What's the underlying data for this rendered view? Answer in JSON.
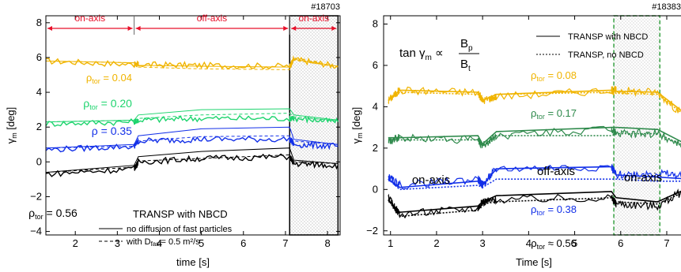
{
  "chart_data": [
    {
      "type": "line",
      "shot": "#18703",
      "xlabel": "time [s]",
      "ylabel_sym": "γ",
      "ylabel_sub": "m",
      "ylabel_unit": "[deg]",
      "xlim": [
        1.3,
        8.3
      ],
      "ylim": [
        -4.2,
        8.4
      ],
      "xticks": [
        2,
        3,
        4,
        5,
        6,
        7,
        8
      ],
      "yticks": [
        -4,
        -2,
        0,
        2,
        4,
        6,
        8
      ],
      "phases": [
        {
          "label": "on-axis",
          "from": 1.3,
          "to": 3.4
        },
        {
          "label": "off-axis",
          "from": 3.4,
          "to": 7.1
        },
        {
          "label": "on-axis",
          "from": 7.1,
          "to": 8.25
        }
      ],
      "hatched_window": [
        7.1,
        8.25
      ],
      "legend_title": "TRANSP with NBCD",
      "legend": [
        {
          "style": "solid",
          "label_pre": "no diffusion of fast particles",
          "label_sub": "",
          "label_post": ""
        },
        {
          "style": "dashed",
          "label_pre": "with D",
          "label_sub": "fast",
          "label_post": "= 0.5 m²/s"
        }
      ],
      "series": [
        {
          "rho_sym": "ρ",
          "rho_sub": "tor",
          "rho_val": "= 0.04",
          "color": "#f0b400",
          "x": [
            1.3,
            3.4,
            3.5,
            5.0,
            7.1,
            7.2,
            8.25
          ],
          "measured": [
            5.8,
            5.6,
            5.6,
            5.55,
            5.5,
            5.9,
            5.5
          ],
          "transp": [
            5.8,
            5.7,
            5.55,
            5.5,
            5.45,
            5.9,
            5.5
          ],
          "transp_diff": [
            5.8,
            5.7,
            5.45,
            5.35,
            5.3,
            5.85,
            5.45
          ]
        },
        {
          "rho_sym": "ρ",
          "rho_sub": "tor",
          "rho_val": "= 0.20",
          "color": "#1ed46e",
          "x": [
            1.3,
            3.4,
            3.5,
            5.0,
            7.1,
            7.2,
            8.25
          ],
          "measured": [
            2.2,
            2.3,
            2.4,
            2.5,
            2.5,
            2.5,
            2.3
          ],
          "transp": [
            2.3,
            2.4,
            2.7,
            3.0,
            3.05,
            2.7,
            2.4
          ],
          "transp_diff": [
            2.3,
            2.4,
            2.5,
            2.7,
            2.8,
            2.6,
            2.35
          ]
        },
        {
          "rho_sym": "ρ",
          "rho_sub": "",
          "rho_val": "= 0.35",
          "color": "#1330e8",
          "x": [
            1.3,
            3.4,
            3.5,
            5.0,
            7.1,
            7.2,
            8.25
          ],
          "measured": [
            0.7,
            0.9,
            1.2,
            1.3,
            1.3,
            1.0,
            0.9
          ],
          "transp": [
            0.8,
            1.0,
            1.5,
            1.9,
            2.0,
            1.3,
            1.0
          ],
          "transp_diff": [
            0.8,
            0.9,
            1.2,
            1.45,
            1.5,
            1.2,
            1.0
          ]
        },
        {
          "rho_sym": "ρ",
          "rho_sub": "tor",
          "rho_val": "= 0.56",
          "color": "#000000",
          "x": [
            1.3,
            3.4,
            3.5,
            5.0,
            7.1,
            7.2,
            8.25
          ],
          "measured": [
            -0.7,
            -0.4,
            0.0,
            0.2,
            0.3,
            -0.1,
            -0.2
          ],
          "transp": [
            -0.6,
            -0.2,
            0.3,
            0.6,
            0.8,
            0.1,
            -0.1
          ],
          "transp_diff": [
            -0.6,
            -0.3,
            0.05,
            0.2,
            0.4,
            0.0,
            -0.1
          ]
        }
      ]
    },
    {
      "type": "line",
      "shot": "#18383",
      "xlabel": "Time [s]",
      "ylabel_sym": "γ",
      "ylabel_sub": "m",
      "ylabel_unit": "[deg]",
      "xlim": [
        0.85,
        7.55
      ],
      "ylim": [
        -2.2,
        8.4
      ],
      "xticks": [
        1,
        2,
        3,
        4,
        5,
        6,
        7
      ],
      "yticks": [
        -2,
        0,
        2,
        4,
        6,
        8
      ],
      "formula_lhs": "tan γ",
      "formula_lhs_sub": "m",
      "formula_op": "∝",
      "formula_num": "B",
      "formula_num_sub": "p",
      "formula_den": "B",
      "formula_den_sub": "t",
      "window": [
        5.85,
        6.85
      ],
      "phase_labels": [
        "on-axis",
        "off-axis",
        "on-axis"
      ],
      "legend": [
        {
          "style": "solid",
          "label": "TRANSP with NBCD"
        },
        {
          "style": "dotted",
          "label": "TRANSP, no NBCD"
        }
      ],
      "series": [
        {
          "rho_sym": "ρ",
          "rho_sub": "tor",
          "rho_val": "= 0.08",
          "color": "#f0b400",
          "x": [
            0.95,
            1.2,
            2.9,
            3.0,
            3.3,
            5.8,
            5.9,
            6.8,
            7.5
          ],
          "measured": [
            4.3,
            4.8,
            4.7,
            4.3,
            4.5,
            4.8,
            4.8,
            4.7,
            3.3
          ],
          "transp": [
            4.3,
            4.8,
            4.7,
            4.3,
            4.6,
            4.8,
            4.75,
            4.7,
            3.5
          ],
          "transp_nonbcd": [
            4.3,
            4.7,
            4.6,
            4.3,
            4.6,
            4.7,
            4.65,
            4.6,
            3.4
          ]
        },
        {
          "rho_sym": "ρ",
          "rho_sub": "tor",
          "rho_val": "= 0.17",
          "color": "#2f8a4c",
          "x": [
            0.95,
            1.2,
            2.9,
            3.0,
            3.3,
            5.8,
            5.9,
            6.8,
            7.5
          ],
          "measured": [
            2.3,
            2.5,
            2.4,
            2.1,
            2.6,
            2.9,
            2.7,
            2.7,
            2.0
          ],
          "transp": [
            2.5,
            2.5,
            2.6,
            2.2,
            2.8,
            3.0,
            3.0,
            2.9,
            2.1
          ],
          "transp_nonbcd": [
            2.4,
            2.4,
            2.4,
            2.1,
            2.6,
            2.6,
            2.7,
            2.7,
            2.0
          ]
        },
        {
          "rho_sym": "ρ",
          "rho_sub": "tor",
          "rho_val": "= 0.38",
          "color": "#1330e8",
          "x": [
            0.95,
            1.2,
            2.9,
            3.0,
            3.3,
            5.8,
            5.9,
            6.8,
            7.5
          ],
          "measured": [
            0.6,
            0.2,
            0.5,
            0.2,
            1.0,
            1.1,
            0.7,
            0.8,
            0.6
          ],
          "transp": [
            0.5,
            0.1,
            0.4,
            0.2,
            1.0,
            1.1,
            0.7,
            0.6,
            0.5
          ],
          "transp_nonbcd": [
            0.5,
            0.0,
            0.2,
            0.1,
            0.5,
            0.5,
            0.5,
            0.4,
            0.4
          ]
        },
        {
          "rho_sym": "ρ",
          "rho_sub": "tor",
          "rho_val": "≈ 0.56",
          "color": "#000000",
          "x": [
            0.95,
            1.2,
            2.9,
            3.0,
            3.3,
            5.8,
            5.9,
            6.8,
            7.5
          ],
          "measured": [
            -0.4,
            -1.2,
            -0.9,
            -0.6,
            -0.5,
            -0.4,
            -0.7,
            -0.8,
            0.1
          ],
          "transp": [
            -0.5,
            -1.1,
            -0.8,
            -0.6,
            -0.3,
            -0.1,
            -0.4,
            -0.6,
            0.1
          ],
          "transp_nonbcd": [
            -0.5,
            -1.3,
            -1.0,
            -0.7,
            -0.6,
            -0.4,
            -0.6,
            -0.7,
            0.0
          ]
        }
      ]
    }
  ]
}
